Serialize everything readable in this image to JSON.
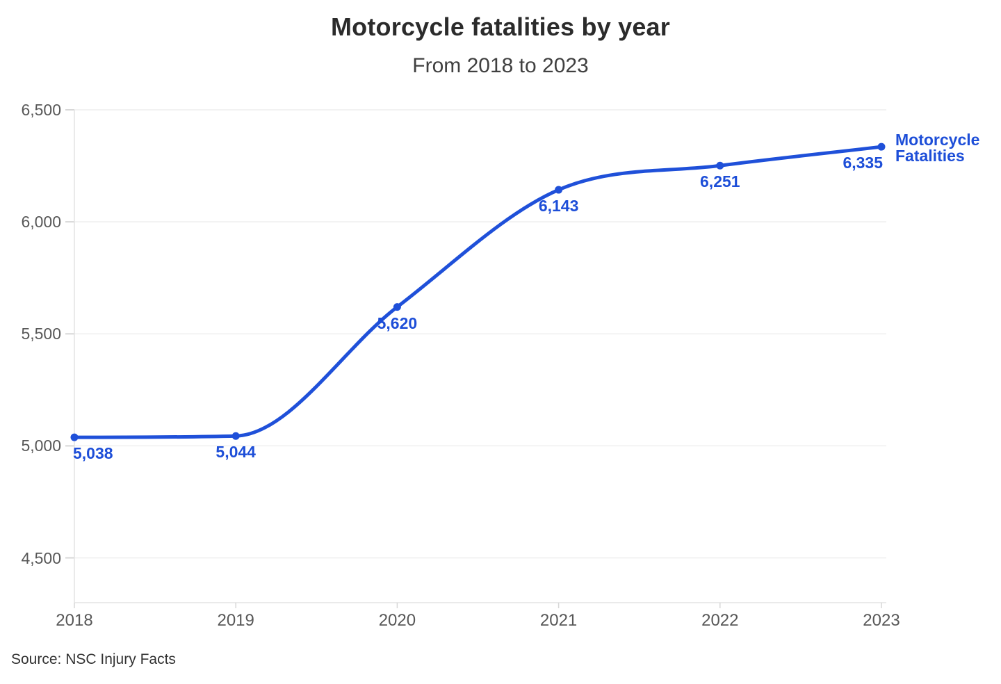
{
  "page": {
    "title": "Motorcycle fatalities by year",
    "subtitle": "From 2018 to 2023",
    "source": "Source: NSC Injury Facts"
  },
  "colors": {
    "line": "#1f50d9",
    "point": "#1f50d9",
    "value_label": "#1d4ed8",
    "legend_text": "#1d4ed8",
    "title_text": "#2b2b2b",
    "subtitle_text": "#404040",
    "axis_text": "#585858",
    "grid": "#eeeeee",
    "axis_line": "#e3e3e3",
    "tick": "#d7d7d7",
    "background": "#ffffff"
  },
  "chart_data": {
    "type": "line",
    "title": "Motorcycle fatalities by year",
    "subtitle": "From 2018 to 2023",
    "categories": [
      "2018",
      "2019",
      "2020",
      "2021",
      "2022",
      "2023"
    ],
    "series": [
      {
        "name": "Motorcycle Fatalities",
        "values": [
          5038,
          5044,
          5620,
          6143,
          6251,
          6335
        ]
      }
    ],
    "point_labels": [
      "5,038",
      "5,044",
      "5,620",
      "6,143",
      "6,251",
      "6,335"
    ],
    "ylim": [
      4300,
      6500
    ],
    "yticks": [
      4500,
      5000,
      5500,
      6000,
      6500
    ],
    "xlabel": "",
    "ylabel": "",
    "grid": "horizontal",
    "curve": "monotone",
    "legend_position": "right-of-last-point",
    "legend_label_lines": [
      "Motorcycle",
      "Fatalities"
    ],
    "source": "Source: NSC Injury Facts"
  }
}
